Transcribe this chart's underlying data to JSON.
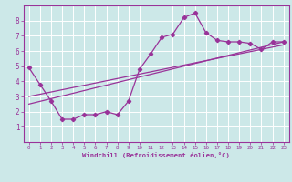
{
  "xlabel": "Windchill (Refroidissement éolien,°C)",
  "bg_color": "#cce8e8",
  "line_color": "#993399",
  "grid_color": "#ffffff",
  "xlim": [
    -0.5,
    23.5
  ],
  "ylim": [
    0,
    9
  ],
  "xticks": [
    0,
    1,
    2,
    3,
    4,
    5,
    6,
    7,
    8,
    9,
    10,
    11,
    12,
    13,
    14,
    15,
    16,
    17,
    18,
    19,
    20,
    21,
    22,
    23
  ],
  "yticks": [
    1,
    2,
    3,
    4,
    5,
    6,
    7,
    8
  ],
  "line1_x": [
    0,
    1,
    2,
    3,
    4,
    5,
    6,
    7,
    8,
    9,
    10,
    11,
    12,
    13,
    14,
    15,
    16,
    17,
    18,
    19,
    20,
    21,
    22,
    23
  ],
  "line1_y": [
    4.9,
    3.8,
    2.7,
    1.5,
    1.5,
    1.8,
    1.8,
    2.0,
    1.8,
    2.7,
    4.8,
    5.8,
    6.9,
    7.1,
    8.2,
    8.5,
    7.2,
    6.7,
    6.6,
    6.6,
    6.5,
    6.1,
    6.6,
    6.6
  ],
  "line2_x": [
    0,
    23
  ],
  "line2_y": [
    2.5,
    6.6
  ],
  "line3_x": [
    0,
    23
  ],
  "line3_y": [
    3.0,
    6.4
  ],
  "marker": "D",
  "markersize": 2.2,
  "linewidth": 0.9,
  "tick_fontsize_x": 4.2,
  "tick_fontsize_y": 5.5,
  "xlabel_fontsize": 5.2
}
